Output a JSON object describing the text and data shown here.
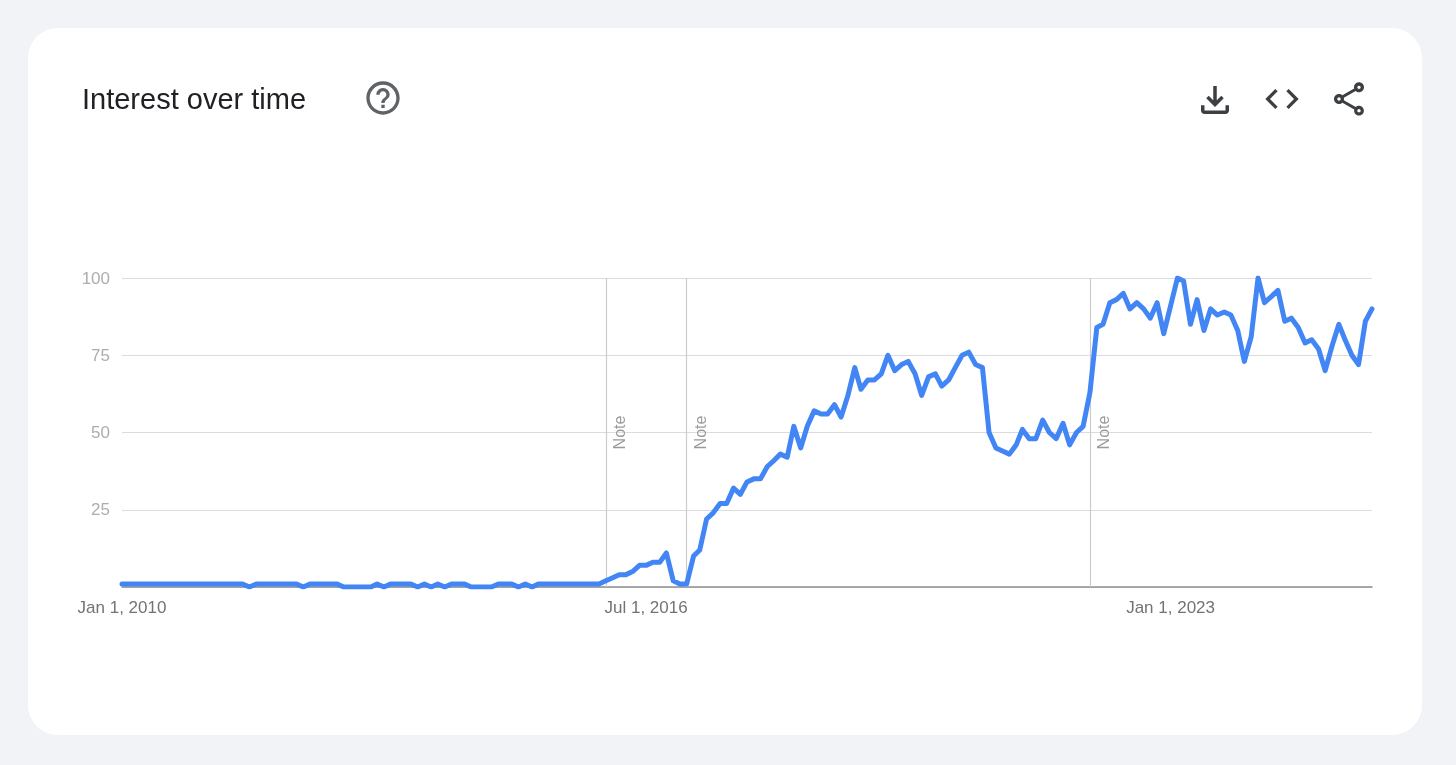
{
  "chart_data": {
    "type": "line",
    "title": "Interest over time",
    "x": [
      "2010-01",
      "2011-07",
      "2011-08",
      "2011-09",
      "2012-03",
      "2012-04",
      "2012-05",
      "2012-09",
      "2012-10",
      "2013-02",
      "2013-03",
      "2013-04",
      "2013-05",
      "2013-08",
      "2013-09",
      "2013-10",
      "2013-11",
      "2013-12",
      "2014-01",
      "2014-02",
      "2014-04",
      "2014-05",
      "2014-08",
      "2014-09",
      "2014-11",
      "2014-12",
      "2015-01",
      "2015-02",
      "2015-03",
      "2015-12",
      "2016-01",
      "2016-02",
      "2016-03",
      "2016-04",
      "2016-05",
      "2016-06",
      "2016-07",
      "2016-08",
      "2016-09",
      "2016-10",
      "2016-11",
      "2016-12",
      "2017-01",
      "2017-02",
      "2017-03",
      "2017-04",
      "2017-05",
      "2017-06",
      "2017-07",
      "2017-08",
      "2017-09",
      "2017-10",
      "2017-11",
      "2017-12",
      "2018-01",
      "2018-02",
      "2018-03",
      "2018-04",
      "2018-05",
      "2018-06",
      "2018-07",
      "2018-08",
      "2018-09",
      "2018-10",
      "2018-11",
      "2018-12",
      "2019-01",
      "2019-02",
      "2019-03",
      "2019-04",
      "2019-05",
      "2019-06",
      "2019-07",
      "2019-08",
      "2019-09",
      "2019-10",
      "2019-11",
      "2019-12",
      "2020-01",
      "2020-02",
      "2020-03",
      "2020-04",
      "2020-05",
      "2020-06",
      "2020-07",
      "2020-08",
      "2020-09",
      "2020-10",
      "2020-11",
      "2020-12",
      "2021-01",
      "2021-02",
      "2021-03",
      "2021-04",
      "2021-05",
      "2021-06",
      "2021-07",
      "2021-08",
      "2021-09",
      "2021-10",
      "2021-11",
      "2021-12",
      "2022-01",
      "2022-02",
      "2022-03",
      "2022-04",
      "2022-05",
      "2022-06",
      "2022-07",
      "2022-08",
      "2022-09",
      "2022-10",
      "2022-11",
      "2022-12",
      "2023-01",
      "2023-02",
      "2023-03",
      "2023-04",
      "2023-05",
      "2023-06",
      "2023-07",
      "2023-08",
      "2023-09",
      "2023-10",
      "2023-11",
      "2023-12",
      "2024-01",
      "2024-02",
      "2024-03",
      "2024-04",
      "2024-05",
      "2024-06",
      "2024-07",
      "2024-08",
      "2024-09",
      "2024-10",
      "2024-11",
      "2024-12",
      "2025-01",
      "2025-02",
      "2025-03",
      "2025-04",
      "2025-05",
      "2025-06",
      "2025-07"
    ],
    "values": [
      1,
      1,
      0,
      1,
      1,
      0,
      1,
      1,
      0,
      0,
      1,
      0,
      1,
      1,
      0,
      1,
      0,
      1,
      0,
      1,
      1,
      0,
      0,
      1,
      1,
      0,
      1,
      0,
      1,
      1,
      2,
      3,
      4,
      4,
      5,
      7,
      7,
      8,
      8,
      11,
      2,
      1,
      1,
      10,
      12,
      22,
      24,
      27,
      27,
      32,
      30,
      34,
      35,
      35,
      39,
      41,
      43,
      42,
      52,
      45,
      52,
      57,
      56,
      56,
      59,
      55,
      62,
      71,
      64,
      67,
      67,
      69,
      75,
      70,
      72,
      73,
      69,
      62,
      68,
      69,
      65,
      67,
      71,
      75,
      76,
      72,
      71,
      50,
      45,
      44,
      43,
      46,
      51,
      48,
      48,
      54,
      50,
      48,
      53,
      46,
      50,
      52,
      63,
      84,
      85,
      92,
      93,
      95,
      90,
      92,
      90,
      87,
      92,
      82,
      91,
      100,
      99,
      85,
      93,
      83,
      90,
      88,
      89,
      88,
      83,
      73,
      81,
      100,
      92,
      94,
      96,
      86,
      87,
      84,
      79,
      80,
      77,
      70,
      78,
      85,
      80,
      75,
      72,
      86,
      90
    ],
    "color": "#4285f4",
    "xlim": [
      "2010-01-01",
      "2025-07-01"
    ],
    "xticks": [
      {
        "value": "2010-01-01",
        "label": "Jan 1, 2010"
      },
      {
        "value": "2016-07-01",
        "label": "Jul 1, 2016"
      },
      {
        "value": "2023-01-01",
        "label": "Jan 1, 2023"
      }
    ],
    "ylim": [
      0,
      100
    ],
    "yticks": [
      25,
      50,
      75,
      100
    ],
    "grid": "y",
    "marker": "none",
    "line_style": "solid",
    "ref_lines": [
      {
        "axis": "x",
        "value": "2016-01-01",
        "label": "Note",
        "color": "#cccccc"
      },
      {
        "axis": "x",
        "value": "2017-01-01",
        "label": "Note",
        "color": "#cccccc"
      },
      {
        "axis": "x",
        "value": "2022-01-01",
        "label": "Note",
        "color": "#cccccc"
      }
    ]
  }
}
